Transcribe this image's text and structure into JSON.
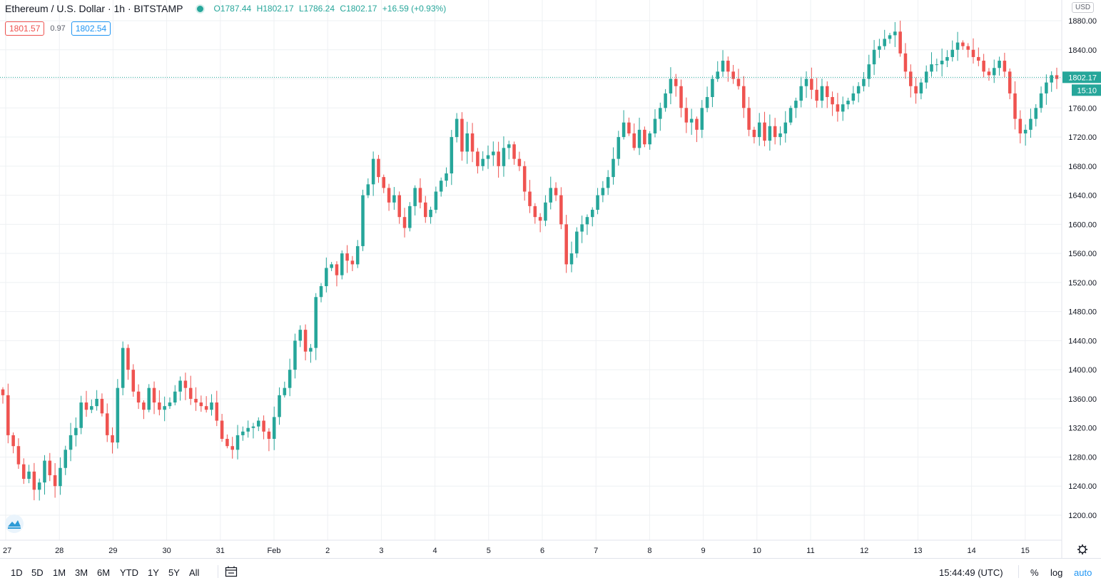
{
  "header": {
    "symbol": "Ethereum / U.S. Dollar · 1h · BITSTAMP",
    "o_label": "O",
    "o": "1787.44",
    "h_label": "H",
    "h": "1802.17",
    "l_label": "L",
    "l": "1786.24",
    "c_label": "C",
    "c": "1802.17",
    "change": "+16.59 (+0.93%)"
  },
  "bid": "1801.57",
  "spread": "0.97",
  "ask": "1802.54",
  "currency": "USD",
  "last_price_label": "1802.17",
  "countdown": "15:10",
  "colors": {
    "up": "#26a69a",
    "down": "#ef5350",
    "grid": "#eef0f3",
    "text": "#131722",
    "accent": "#2196f3"
  },
  "timeframes": [
    "1D",
    "5D",
    "1M",
    "3M",
    "6M",
    "YTD",
    "1Y",
    "5Y",
    "All"
  ],
  "clock": "15:44:49 (UTC)",
  "options": {
    "percent": "%",
    "log": "log",
    "auto": "auto"
  },
  "icons": {
    "settings": "gear-icon",
    "date_range": "calendar-range-icon",
    "logo": "tradingview-logo-icon"
  },
  "chart_data": {
    "type": "candlestick",
    "ylim": [
      1185,
      1890
    ],
    "yticks": [
      1200,
      1240,
      1280,
      1320,
      1360,
      1400,
      1440,
      1480,
      1520,
      1560,
      1600,
      1640,
      1680,
      1720,
      1760,
      1800,
      1840,
      1880
    ],
    "ytick_labels": [
      "1200.00",
      "1240.00",
      "1280.00",
      "1320.00",
      "1360.00",
      "1400.00",
      "1440.00",
      "1480.00",
      "1520.00",
      "1560.00",
      "1600.00",
      "1640.00",
      "1680.00",
      "1720.00",
      "1760.00",
      "1800.00",
      "1840.00",
      "1880.00"
    ],
    "xtick_labels": [
      "27",
      "28",
      "29",
      "30",
      "31",
      "Feb",
      "2",
      "3",
      "4",
      "5",
      "6",
      "7",
      "8",
      "9",
      "10",
      "11",
      "12",
      "13",
      "14",
      "15"
    ],
    "last_price": 1802.17,
    "closes": [
      1365,
      1310,
      1295,
      1270,
      1250,
      1260,
      1235,
      1245,
      1275,
      1255,
      1240,
      1265,
      1290,
      1310,
      1320,
      1355,
      1345,
      1350,
      1360,
      1340,
      1310,
      1300,
      1375,
      1430,
      1400,
      1370,
      1355,
      1345,
      1375,
      1355,
      1345,
      1350,
      1355,
      1370,
      1385,
      1375,
      1360,
      1355,
      1350,
      1345,
      1355,
      1330,
      1305,
      1295,
      1290,
      1310,
      1315,
      1320,
      1322,
      1330,
      1315,
      1305,
      1335,
      1365,
      1375,
      1400,
      1440,
      1455,
      1425,
      1430,
      1500,
      1515,
      1540,
      1545,
      1530,
      1560,
      1550,
      1545,
      1570,
      1640,
      1655,
      1690,
      1665,
      1650,
      1630,
      1640,
      1610,
      1595,
      1625,
      1650,
      1630,
      1610,
      1620,
      1645,
      1660,
      1670,
      1720,
      1745,
      1700,
      1725,
      1700,
      1680,
      1690,
      1695,
      1700,
      1680,
      1705,
      1710,
      1690,
      1680,
      1645,
      1625,
      1610,
      1605,
      1630,
      1650,
      1640,
      1600,
      1545,
      1560,
      1590,
      1600,
      1610,
      1620,
      1640,
      1650,
      1665,
      1690,
      1720,
      1740,
      1725,
      1705,
      1730,
      1710,
      1725,
      1745,
      1760,
      1780,
      1800,
      1790,
      1760,
      1740,
      1745,
      1730,
      1760,
      1775,
      1800,
      1810,
      1825,
      1810,
      1800,
      1790,
      1760,
      1730,
      1720,
      1740,
      1715,
      1735,
      1720,
      1725,
      1740,
      1760,
      1770,
      1790,
      1800,
      1785,
      1770,
      1790,
      1775,
      1765,
      1755,
      1765,
      1770,
      1780,
      1790,
      1800,
      1820,
      1840,
      1845,
      1855,
      1860,
      1865,
      1835,
      1810,
      1790,
      1780,
      1795,
      1810,
      1820,
      1820,
      1825,
      1830,
      1840,
      1850,
      1845,
      1840,
      1830,
      1825,
      1810,
      1805,
      1815,
      1825,
      1810,
      1780,
      1745,
      1725,
      1730,
      1745,
      1760,
      1780,
      1795,
      1805,
      1800
    ]
  }
}
